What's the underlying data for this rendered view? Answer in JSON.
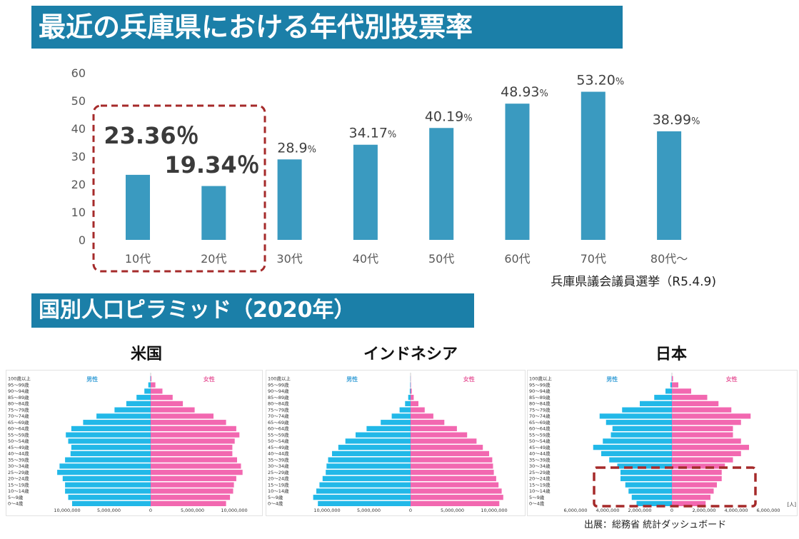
{
  "banner_top": "最近の兵庫県における年代別投票率",
  "banner_bottom": "国別人口ピラミッド（2020年）",
  "colors": {
    "banner": "#1b7fa8",
    "bar": "#3a9ac0",
    "male": "#22b8e8",
    "female": "#f268b0",
    "highlight": "#a52a2a"
  },
  "chart_data": [
    {
      "type": "bar",
      "title": "",
      "categories": [
        "10代",
        "20代",
        "30代",
        "40代",
        "50代",
        "60代",
        "70代",
        "80代～"
      ],
      "values": [
        23.36,
        19.34,
        28.9,
        34.17,
        40.19,
        48.93,
        53.2,
        38.99
      ],
      "value_labels": [
        {
          "num": "23.36",
          "unit": "％"
        },
        {
          "num": "19.34",
          "unit": "％"
        },
        {
          "num": "28.9",
          "unit": "%"
        },
        {
          "num": "34.17",
          "unit": "%"
        },
        {
          "num": "40.19",
          "unit": "%"
        },
        {
          "num": "48.93",
          "unit": "%"
        },
        {
          "num": "53.20",
          "unit": "%"
        },
        {
          "num": "38.99",
          "unit": "%"
        }
      ],
      "yticks": [
        "0",
        "10",
        "20",
        "30",
        "40",
        "50",
        "60"
      ],
      "ylim": [
        0,
        60
      ],
      "grid": false,
      "highlight_categories": [
        "10代",
        "20代"
      ],
      "note": "兵庫県議会議員選挙（R5.4.9)"
    },
    {
      "type": "bar",
      "subtype": "population-pyramid",
      "title": "米国",
      "male_label": "男性",
      "female_label": "女性",
      "age_groups": [
        "0～4歳",
        "5～9歳",
        "10～14歳",
        "15～19歳",
        "20～24歳",
        "25～29歳",
        "30～34歳",
        "35～39歳",
        "40～44歳",
        "45～49歳",
        "50～54歳",
        "55～59歳",
        "60～64歳",
        "65～69歳",
        "70～74歳",
        "75～79歳",
        "80～84歳",
        "85～89歳",
        "90～94歳",
        "95～99歳",
        "100歳以上"
      ],
      "male": [
        10.0,
        10.5,
        10.9,
        10.9,
        11.2,
        11.9,
        11.6,
        10.9,
        10.2,
        10.1,
        10.5,
        10.8,
        10.1,
        8.6,
        6.9,
        4.6,
        3.1,
        1.8,
        0.8,
        0.3,
        0.05
      ],
      "female": [
        9.6,
        10.1,
        10.5,
        10.6,
        10.9,
        11.7,
        11.5,
        11.0,
        10.4,
        10.4,
        10.7,
        11.3,
        10.9,
        9.6,
        8.0,
        5.6,
        4.1,
        2.8,
        1.5,
        0.6,
        0.1
      ],
      "xticks": [
        "10,000,000",
        "5,000,000",
        "0",
        "5,000,000",
        "10,000,000"
      ],
      "xmax": 12000000
    },
    {
      "type": "bar",
      "subtype": "population-pyramid",
      "title": "インドネシア",
      "male_label": "男性",
      "female_label": "女性",
      "age_groups": [
        "0～4歳",
        "5～9歳",
        "10～14歳",
        "15～19歳",
        "20～24歳",
        "25～29歳",
        "30～34歳",
        "35～39歳",
        "40～44歳",
        "45～49歳",
        "50～54歳",
        "55～59歳",
        "60～64歳",
        "65～69歳",
        "70～74歳",
        "75～79歳",
        "80～84歳",
        "85～89歳",
        "90～94歳",
        "95～99歳",
        "100歳以上"
      ],
      "male": [
        11.8,
        12.4,
        12.0,
        11.6,
        11.2,
        10.8,
        10.7,
        10.5,
        10.0,
        9.2,
        8.3,
        7.0,
        5.6,
        3.8,
        2.4,
        1.4,
        0.7,
        0.3,
        0.1,
        0.05,
        0.02
      ],
      "female": [
        11.3,
        11.8,
        11.6,
        11.2,
        10.9,
        10.6,
        10.5,
        10.4,
        10.0,
        9.2,
        8.4,
        7.2,
        5.9,
        4.3,
        2.9,
        1.8,
        1.0,
        0.4,
        0.15,
        0.05,
        0.02
      ],
      "xticks": [
        "10,000,000",
        "5,000,000",
        "0",
        "5,000,000",
        "10,000,000"
      ],
      "xmax": 12000000
    },
    {
      "type": "bar",
      "subtype": "population-pyramid",
      "title": "日本",
      "male_label": "男性",
      "female_label": "女性",
      "age_groups": [
        "0～4歳",
        "5～9歳",
        "10～14歳",
        "15～19歳",
        "20～24歳",
        "25～29歳",
        "30～34歳",
        "35～39歳",
        "40～44歳",
        "45～49歳",
        "50～54歳",
        "55～59歳",
        "60～64歳",
        "65～69歳",
        "70～74歳",
        "75～79歳",
        "80～84歳",
        "85～89歳",
        "90～94歳",
        "95～99歳",
        "100歳以上"
      ],
      "male": [
        2.2,
        2.5,
        2.7,
        2.9,
        3.2,
        3.2,
        3.4,
        3.9,
        4.4,
        4.9,
        4.3,
        3.8,
        3.7,
        4.1,
        4.5,
        3.1,
        2.0,
        1.1,
        0.4,
        0.1,
        0.02
      ],
      "female": [
        2.1,
        2.4,
        2.6,
        2.8,
        3.1,
        3.1,
        3.3,
        3.8,
        4.3,
        4.8,
        4.3,
        3.8,
        3.8,
        4.3,
        4.9,
        3.7,
        2.9,
        2.2,
        1.2,
        0.4,
        0.07
      ],
      "xticks": [
        "6,000,000",
        "4,000,000",
        "2,000,000",
        "0",
        "2,000,000",
        "4,000,000",
        "6,000,000"
      ],
      "xmax": 6000000,
      "unit_label": "[人]",
      "highlight_ranges": [
        "15～19歳",
        "20～24歳",
        "25～29歳"
      ]
    }
  ],
  "source": "出展：総務省 統計ダッシュボード"
}
